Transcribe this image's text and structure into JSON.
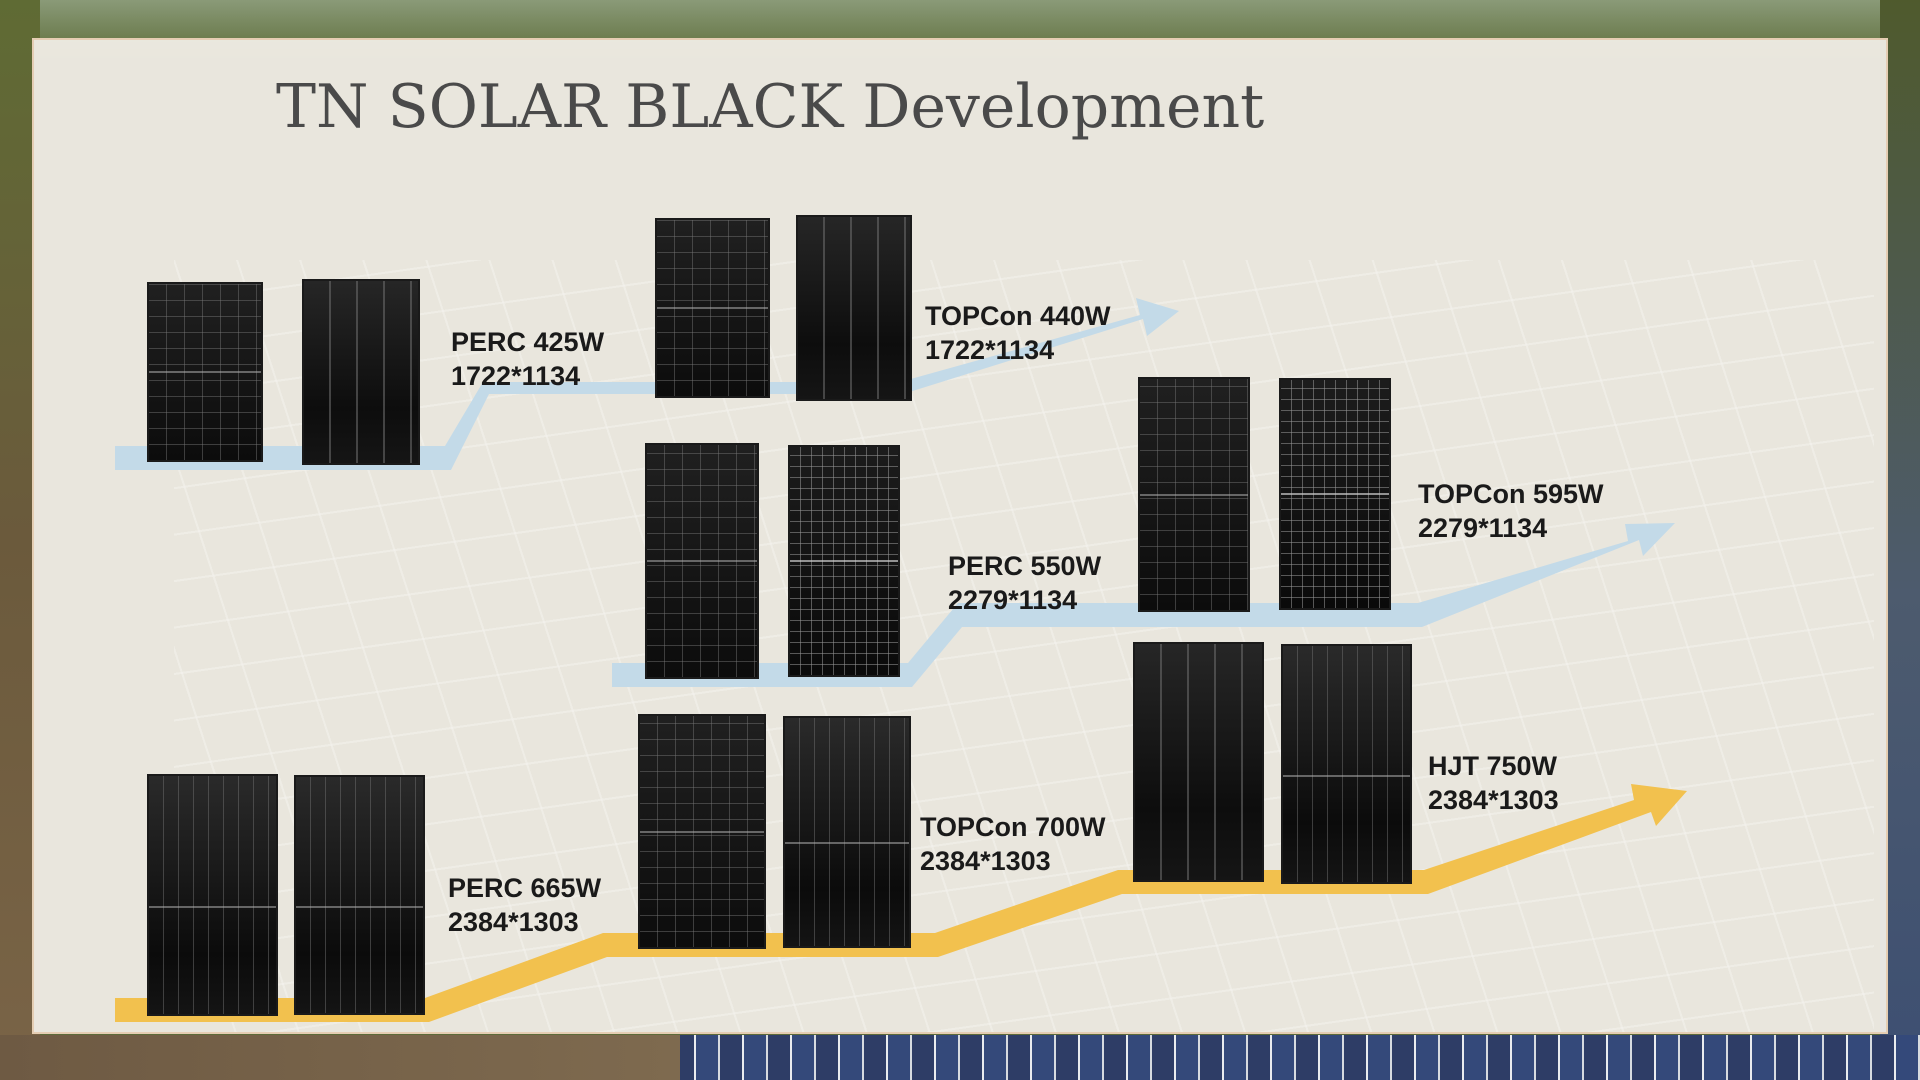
{
  "title": "TN SOLAR BLACK Development",
  "colors": {
    "row1_arrow": "#c3dae8",
    "row2_arrow": "#c3dae8",
    "row3_arrow": "#f2c14e",
    "panel_background": "#f4f0ea",
    "title_text": "#4a4a4a",
    "label_text": "#1a1a1a"
  },
  "rows": [
    {
      "arrow_color": "light-blue",
      "stages": [
        {
          "name": "PERC 425W",
          "size": "1722*1134"
        },
        {
          "name": "TOPCon 440W",
          "size": "1722*1134"
        }
      ]
    },
    {
      "arrow_color": "light-blue",
      "stages": [
        {
          "name": "PERC 550W",
          "size": "2279*1134"
        },
        {
          "name": "TOPCon 595W",
          "size": "2279*1134"
        }
      ]
    },
    {
      "arrow_color": "yellow",
      "stages": [
        {
          "name": "PERC 665W",
          "size": "2384*1303"
        },
        {
          "name": "TOPCon 700W",
          "size": "2384*1303"
        },
        {
          "name": "HJT 750W",
          "size": "2384*1303"
        }
      ]
    }
  ]
}
